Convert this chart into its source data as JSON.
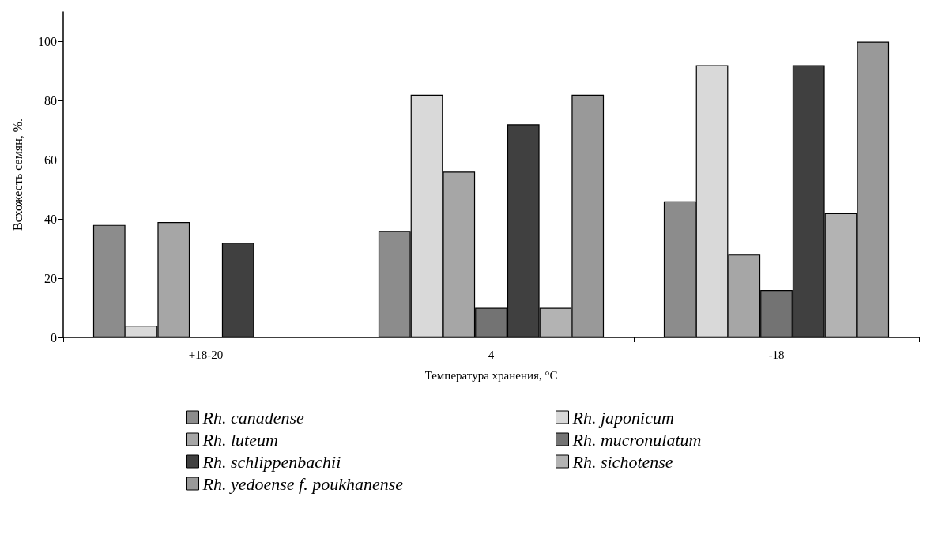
{
  "chart_data": {
    "type": "bar",
    "xlabel": "Температура хранения, °C",
    "ylabel": "Всхожесть семян, %.",
    "categories": [
      "+18-20",
      "4",
      "-18"
    ],
    "series": [
      {
        "name": "Rh. canadense",
        "color": "#8c8c8c",
        "values": [
          38,
          36,
          46
        ]
      },
      {
        "name": "Rh. japonicum",
        "color": "#d9d9d9",
        "values": [
          4,
          82,
          92
        ]
      },
      {
        "name": "Rh. luteum",
        "color": "#a6a6a6",
        "values": [
          39,
          56,
          28
        ]
      },
      {
        "name": "Rh. mucronulatum",
        "color": "#737373",
        "values": [
          null,
          10,
          16
        ]
      },
      {
        "name": "Rh. schlippenbachii",
        "color": "#404040",
        "values": [
          32,
          72,
          92
        ]
      },
      {
        "name": "Rh. sichotense",
        "color": "#b3b3b3",
        "values": [
          null,
          10,
          42
        ]
      },
      {
        "name": "Rh. yedoense f. poukhanense",
        "color": "#999999",
        "values": [
          null,
          82,
          100
        ]
      }
    ],
    "ylim": [
      0,
      110
    ],
    "yticks": [
      0,
      20,
      40,
      60,
      80,
      100
    ],
    "grid": false,
    "legend": "bottom"
  }
}
